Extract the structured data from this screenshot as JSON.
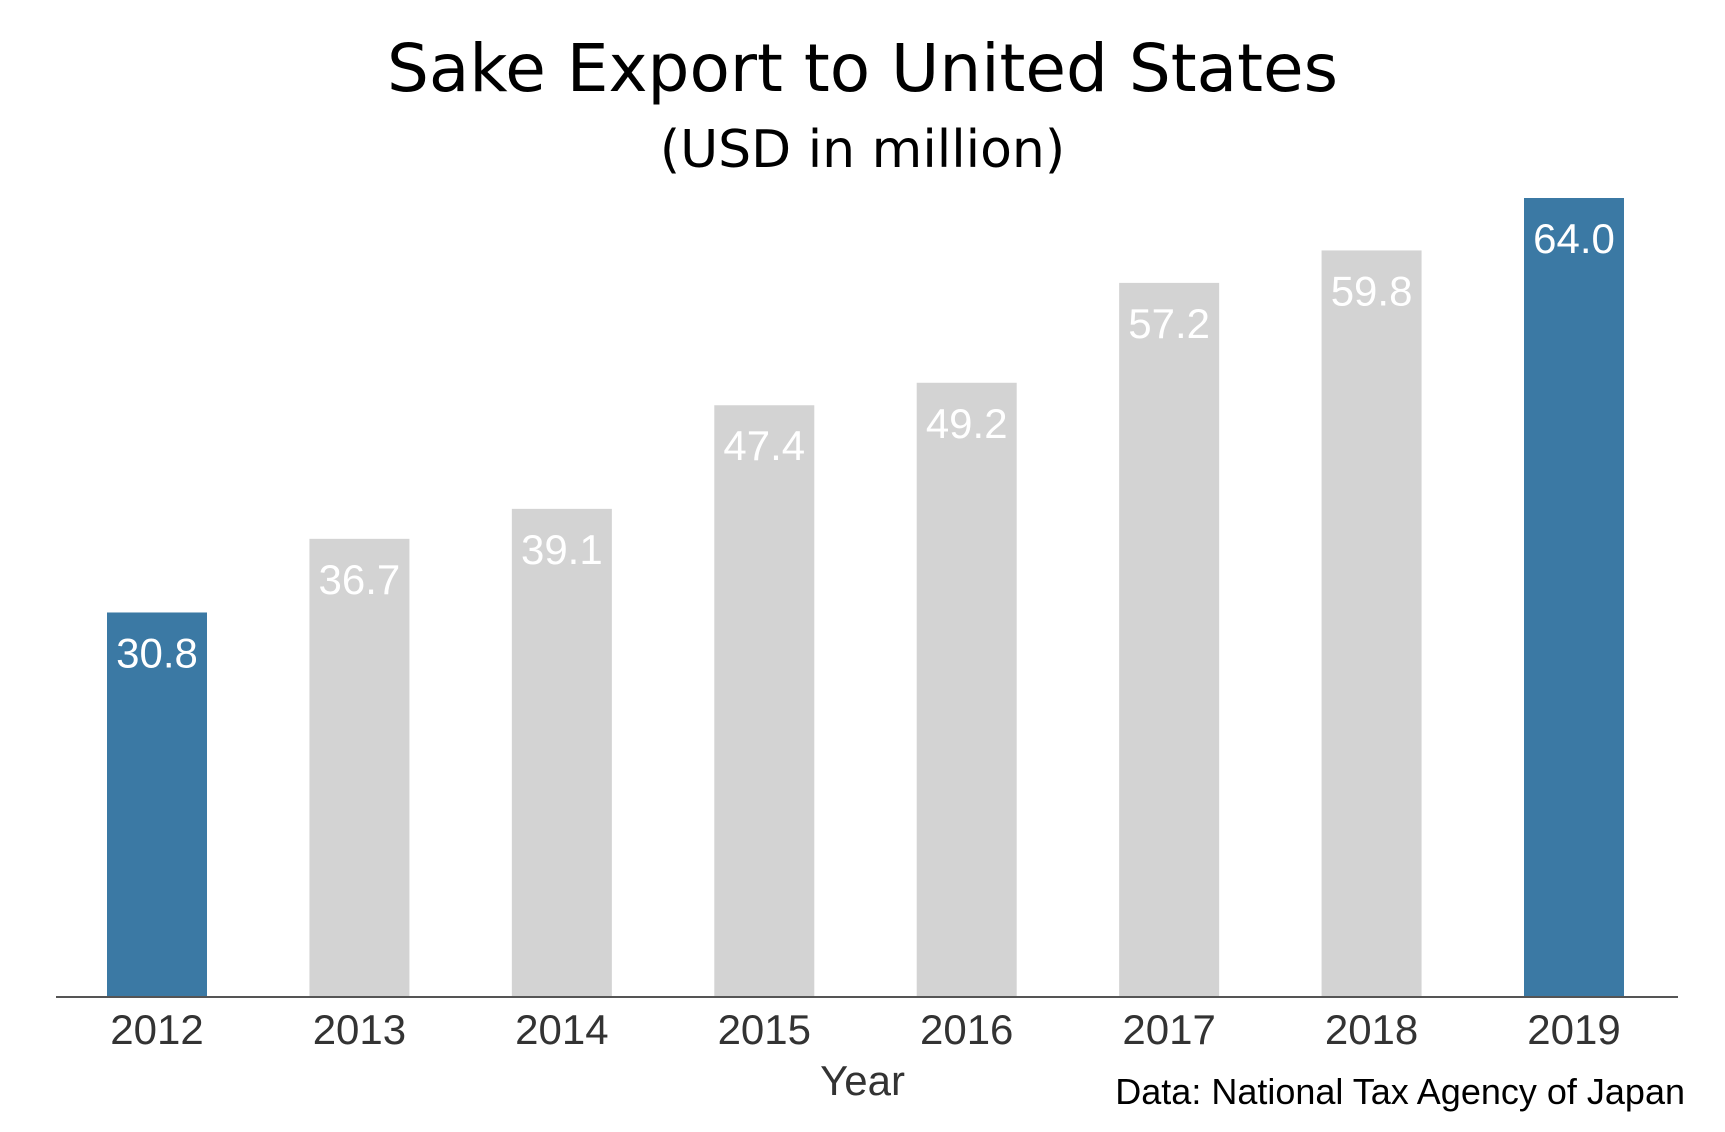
{
  "chart_data": {
    "type": "bar",
    "title": "Sake Export to United States",
    "subtitle": "(USD in million)",
    "xlabel": "Year",
    "ylabel": "",
    "categories": [
      "2012",
      "2013",
      "2014",
      "2015",
      "2016",
      "2017",
      "2018",
      "2019"
    ],
    "values": [
      30.8,
      36.7,
      39.1,
      47.4,
      49.2,
      57.2,
      59.8,
      64.0
    ],
    "value_labels": [
      "30.8",
      "36.7",
      "39.1",
      "47.4",
      "49.2",
      "57.2",
      "59.8",
      "64.0"
    ],
    "highlighted_categories": [
      "2012",
      "2019"
    ],
    "ylim": [
      0,
      64.0
    ],
    "grid": false,
    "y_axis_visible": false,
    "colors": {
      "highlight": "#3b79a4",
      "default": "#d3d3d3",
      "value_label": "#ffffff",
      "axis": "#555555",
      "tick_label": "#333333"
    },
    "source": "Data: National Tax Agency of Japan"
  }
}
